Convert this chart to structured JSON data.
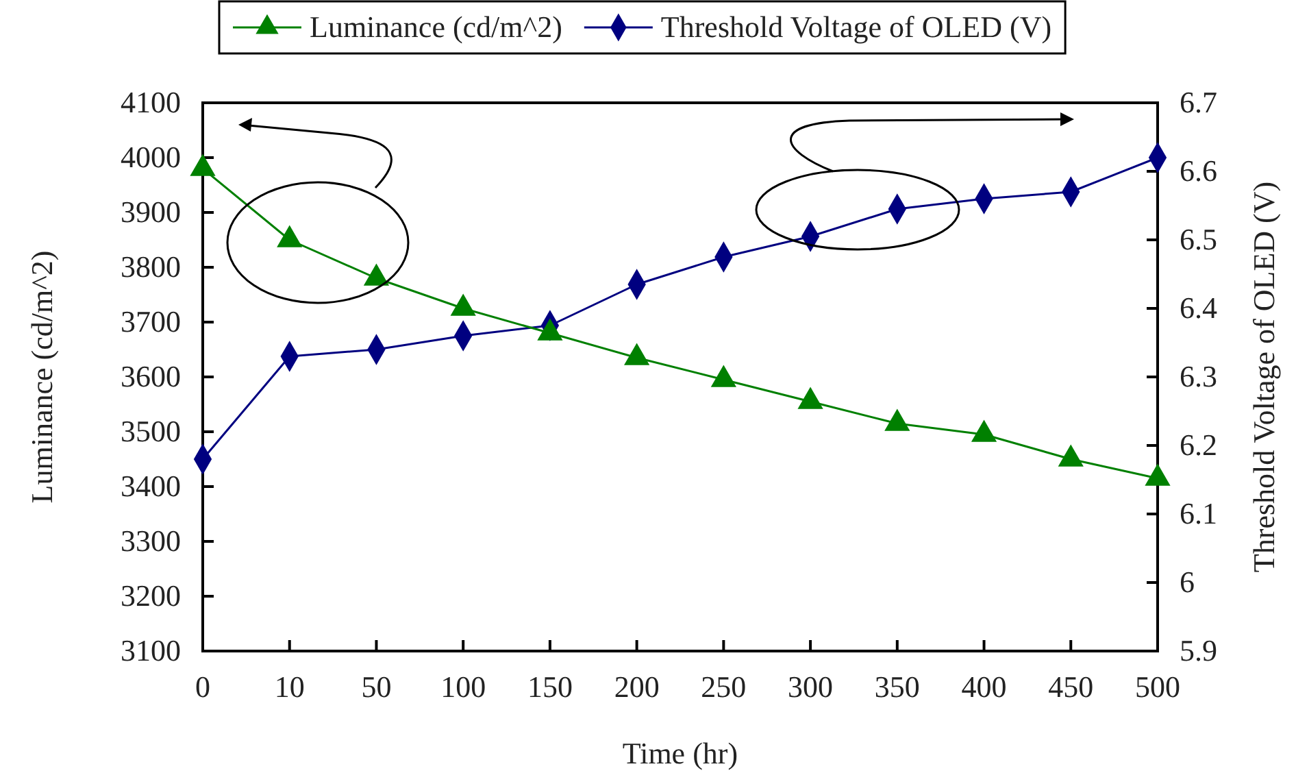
{
  "chart_data": {
    "type": "line",
    "xlabel": "Time (hr)",
    "ylabel": "Luminance (cd/m^2)",
    "y2label": "Threshold Voltage of OLED (V)",
    "categories": [
      "0",
      "10",
      "50",
      "100",
      "150",
      "200",
      "250",
      "300",
      "350",
      "400",
      "450",
      "500"
    ],
    "series": [
      {
        "name": "Luminance (cd/m^2)",
        "color": "#008000",
        "marker": "triangle",
        "values": [
          3980,
          3850,
          3780,
          3725,
          3680,
          3635,
          3595,
          3555,
          3515,
          3495,
          3450,
          3415
        ]
      },
      {
        "name": "Threshold Voltage of OLED (V)",
        "color": "#000080",
        "marker": "diamond",
        "axis": "y2",
        "values": [
          6.18,
          6.33,
          6.34,
          6.36,
          6.375,
          6.435,
          6.475,
          6.505,
          6.545,
          6.56,
          6.57,
          6.62
        ]
      }
    ],
    "ylim": [
      3100,
      4100
    ],
    "yticks": [
      3100,
      3200,
      3300,
      3400,
      3500,
      3600,
      3700,
      3800,
      3900,
      4000,
      4100
    ],
    "y2lim": [
      5.9,
      6.7
    ],
    "y2ticks": [
      5.9,
      6,
      6.1,
      6.2,
      6.3,
      6.4,
      6.5,
      6.6,
      6.7
    ],
    "legend": "top",
    "grid": false,
    "line_style": "solid"
  }
}
